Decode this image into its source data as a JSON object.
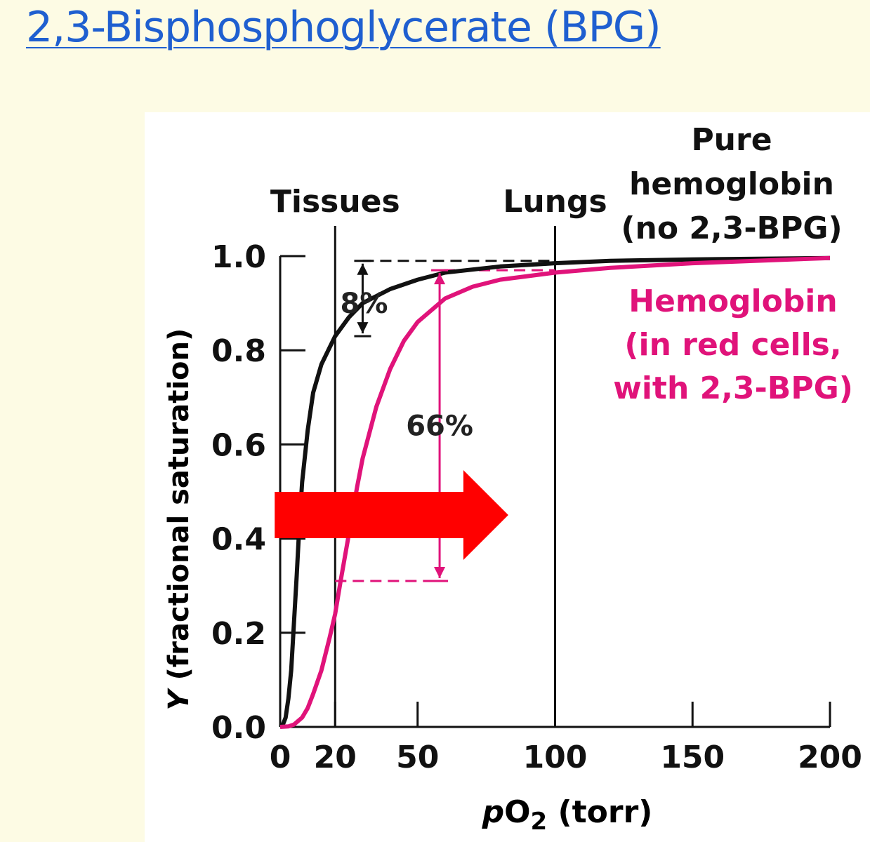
{
  "slide": {
    "title": "2,3-Bisphosphoglycerate (BPG)"
  },
  "colors": {
    "background": "#fdfbe4",
    "title_link": "#1f5fd0",
    "pure_hemoglobin": "#111111",
    "red_cell_hemoglobin": "#e0137a",
    "highlight_arrow": "#ff0000"
  },
  "chart_data": {
    "type": "line",
    "xlabel_prefix": "p",
    "xlabel_o": "O",
    "xlabel_sub": "2",
    "xlabel_suffix": " (torr)",
    "ylabel_var": "Y",
    "ylabel_rest": " (fractional saturation)",
    "xlim": [
      0,
      200
    ],
    "ylim": [
      0,
      1.0
    ],
    "x_ticks": [
      0,
      20,
      50,
      100,
      150,
      200
    ],
    "x_tick_labels": [
      "0",
      "20",
      "50",
      "100",
      "150",
      "200"
    ],
    "y_ticks": [
      0.0,
      0.2,
      0.4,
      0.6,
      0.8,
      1.0
    ],
    "y_tick_labels": [
      "0.0",
      "0.2",
      "0.4",
      "0.6",
      "0.8",
      "1.0"
    ],
    "grid": false,
    "vertical_markers": [
      {
        "x": 20,
        "label": "Tissues"
      },
      {
        "x": 100,
        "label": "Lungs"
      }
    ],
    "series": [
      {
        "name_lines": [
          "Pure",
          "hemoglobin",
          "(no 2,3-BPG)"
        ],
        "color": "#111111",
        "x": [
          0,
          1,
          2,
          3,
          4,
          5,
          6,
          7,
          8,
          10,
          12,
          15,
          20,
          25,
          30,
          40,
          50,
          60,
          80,
          100,
          120,
          150,
          200
        ],
        "y": [
          0,
          0.005,
          0.02,
          0.06,
          0.12,
          0.22,
          0.32,
          0.43,
          0.52,
          0.63,
          0.71,
          0.77,
          0.83,
          0.87,
          0.9,
          0.93,
          0.95,
          0.965,
          0.978,
          0.985,
          0.99,
          0.993,
          0.996
        ]
      },
      {
        "name_lines": [
          "Hemoglobin",
          "(in red cells,",
          "with 2,3-BPG)"
        ],
        "color": "#e0137a",
        "x": [
          0,
          3,
          5,
          8,
          10,
          12,
          15,
          18,
          20,
          22,
          25,
          28,
          30,
          35,
          40,
          45,
          50,
          60,
          70,
          80,
          100,
          120,
          150,
          200
        ],
        "y": [
          0,
          0.001,
          0.005,
          0.02,
          0.04,
          0.07,
          0.12,
          0.19,
          0.24,
          0.31,
          0.41,
          0.51,
          0.57,
          0.68,
          0.76,
          0.82,
          0.86,
          0.91,
          0.935,
          0.95,
          0.965,
          0.975,
          0.985,
          0.996
        ]
      }
    ],
    "annotations": [
      {
        "label": "8%",
        "x": 30,
        "y_from": 0.83,
        "y_to": 0.99,
        "color": "#111111"
      },
      {
        "label": "66%",
        "x": 58,
        "y_from": 0.31,
        "y_to": 0.97,
        "color": "#e0137a"
      }
    ],
    "highlight_arrow": {
      "direction": "right",
      "color": "#ff0000",
      "x_from": -2,
      "x_to": 83,
      "y": 0.45
    }
  }
}
